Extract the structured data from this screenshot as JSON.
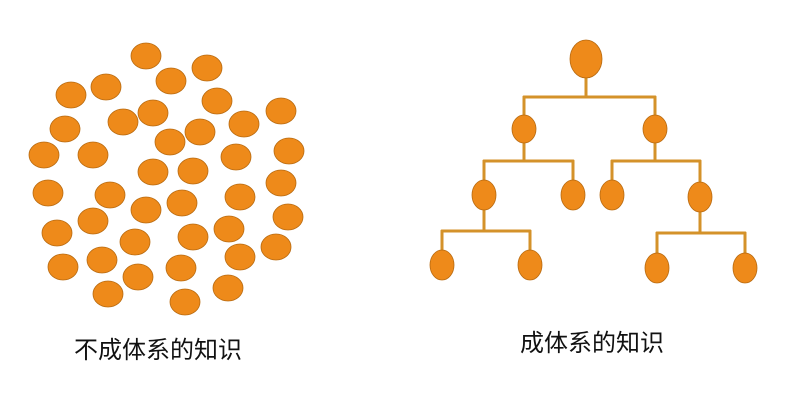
{
  "colors": {
    "node_fill": "#ee8a1a",
    "node_stroke": "#b86a10",
    "connector": "#d4922a"
  },
  "left": {
    "caption": "不成体系的知识"
  },
  "right": {
    "caption": "成体系的知识"
  }
}
